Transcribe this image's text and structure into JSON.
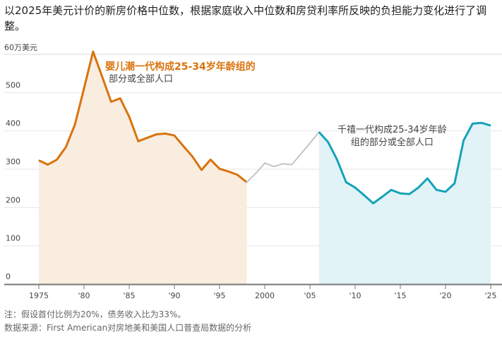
{
  "title": "以2025年美元计价的新房价格中位数，根据家庭收入中位数和房贷利率所反映的负担能力变化进行了调整。",
  "note": "注：假设首付比例为20%，债务收入比为33%。",
  "source": "数据来源：First American对房地美和美国人口普查局数据的分析",
  "chart_data": {
    "type": "line",
    "ylabel": "60万美元",
    "ylim": [
      0,
      600
    ],
    "yticks": [
      "0",
      "100",
      "200",
      "300",
      "400",
      "500"
    ],
    "xlim": [
      1975,
      2025
    ],
    "xticks": [
      {
        "v": 1975,
        "l": "1975"
      },
      {
        "v": 1980,
        "l": "'80"
      },
      {
        "v": 1985,
        "l": "'85"
      },
      {
        "v": 1990,
        "l": "'90"
      },
      {
        "v": 1995,
        "l": "'95"
      },
      {
        "v": 2000,
        "l": "2000"
      },
      {
        "v": 2005,
        "l": "'05"
      },
      {
        "v": 2010,
        "l": "'10"
      },
      {
        "v": 2015,
        "l": "'15"
      },
      {
        "v": 2020,
        "l": "'20"
      },
      {
        "v": 2025,
        "l": "'25"
      }
    ],
    "grid": true,
    "colors": {
      "boomer": "#d9730d",
      "boomer_fill": "#f9ede0",
      "gap": "#c4c4c4",
      "millennial": "#13a3b8",
      "millennial_fill": "#e1f3f7"
    },
    "annotations": {
      "boomer": [
        "婴儿潮一代构成25-34岁年龄组的",
        "部分或全部人口"
      ],
      "millennial": [
        "千禧一代构成25-34岁年龄",
        "组的部分或全部人口"
      ]
    },
    "series": [
      {
        "key": "boomer",
        "x": [
          1975,
          1976,
          1977,
          1978,
          1979,
          1980,
          1981,
          1982,
          1983,
          1984,
          1985,
          1986,
          1987,
          1988,
          1989,
          1990,
          1991,
          1992,
          1993,
          1994,
          1995,
          1996,
          1997,
          1998
        ],
        "values": [
          323,
          312,
          325,
          358,
          417,
          511,
          607,
          542,
          476,
          485,
          437,
          373,
          382,
          391,
          393,
          388,
          360,
          333,
          298,
          325,
          301,
          294,
          285,
          266
        ]
      },
      {
        "key": "gap",
        "x": [
          1998,
          1999,
          2000,
          2001,
          2002,
          2003,
          2004,
          2005,
          2006
        ],
        "values": [
          266,
          289,
          316,
          307,
          314,
          312,
          340,
          368,
          397
        ]
      },
      {
        "key": "millennial",
        "x": [
          2006,
          2007,
          2008,
          2009,
          2010,
          2011,
          2012,
          2013,
          2014,
          2015,
          2016,
          2017,
          2018,
          2019,
          2020,
          2021,
          2022,
          2023,
          2024,
          2025
        ],
        "values": [
          397,
          371,
          325,
          266,
          252,
          232,
          211,
          228,
          246,
          237,
          235,
          252,
          276,
          246,
          241,
          263,
          375,
          419,
          421,
          414
        ]
      }
    ]
  }
}
